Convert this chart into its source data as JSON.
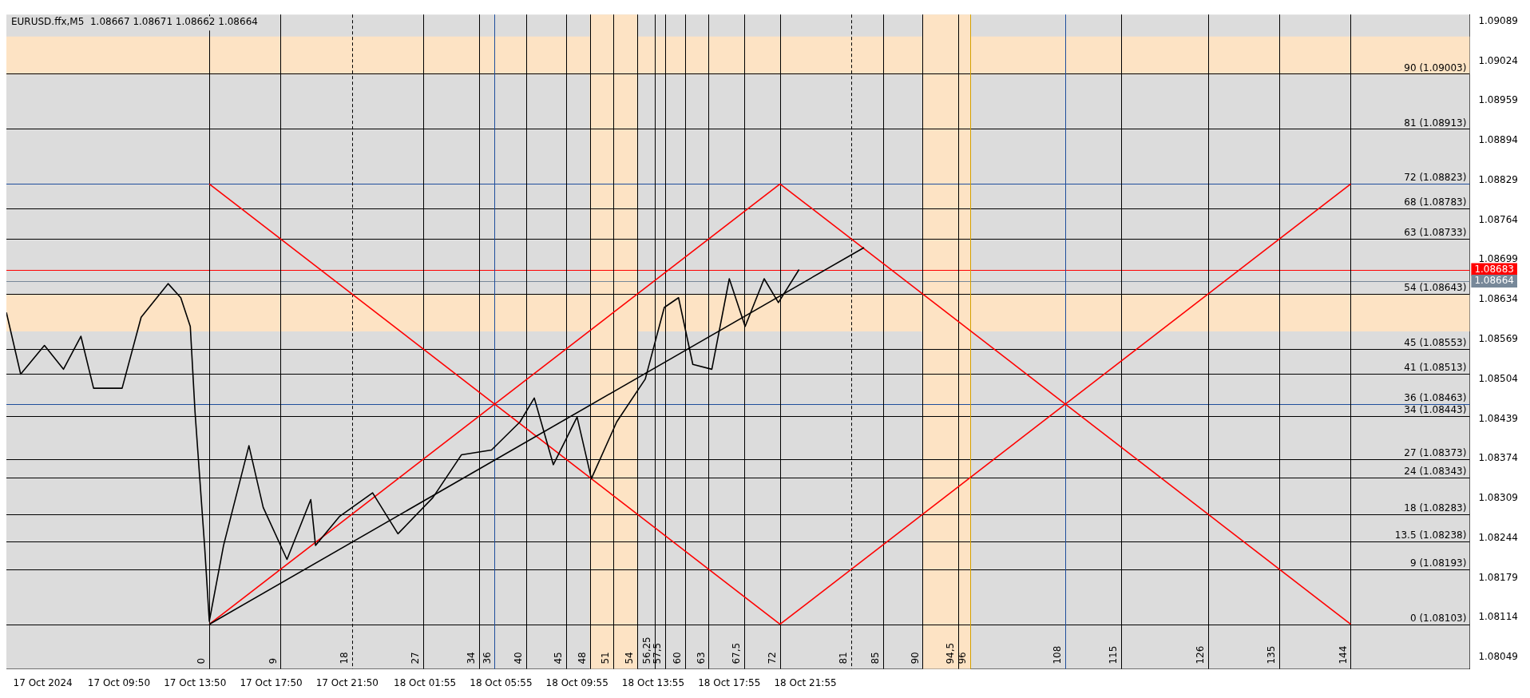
{
  "chart_data": {
    "type": "line",
    "title": "EURUSD.ffx,M5  1.08667 1.08671 1.08662 1.08664",
    "xlim": [
      "2024-10-17T03:55",
      "2024-10-20T08:50"
    ],
    "xticks": [
      {
        "value": "2024-10-17T05:50",
        "label": "17 Oct 2024"
      },
      {
        "value": "2024-10-17T09:50",
        "label": "17 Oct 09:50"
      },
      {
        "value": "2024-10-17T13:50",
        "label": "17 Oct 13:50"
      },
      {
        "value": "2024-10-17T17:50",
        "label": "17 Oct 17:50"
      },
      {
        "value": "2024-10-17T21:50",
        "label": "17 Oct 21:50"
      },
      {
        "value": "2024-10-18T01:55",
        "label": "18 Oct 01:55"
      },
      {
        "value": "2024-10-18T05:55",
        "label": "18 Oct 05:55"
      },
      {
        "value": "2024-10-18T09:55",
        "label": "18 Oct 09:55"
      },
      {
        "value": "2024-10-18T13:55",
        "label": "18 Oct 13:55"
      },
      {
        "value": "2024-10-18T17:55",
        "label": "18 Oct 17:55"
      },
      {
        "value": "2024-10-18T21:55",
        "label": "18 Oct 21:55"
      }
    ],
    "ylim": [
      1.0803,
      1.091
    ],
    "yticks": [
      1.08049,
      1.08114,
      1.08179,
      1.08244,
      1.08309,
      1.08374,
      1.08439,
      1.08504,
      1.08569,
      1.08634,
      1.08699,
      1.08764,
      1.08829,
      1.08894,
      1.08959,
      1.09024,
      1.09089
    ],
    "grid": false,
    "legend": false,
    "series": [
      {
        "color": "#000000",
        "x": [
          "2024-10-17T03:55",
          "2024-10-17T04:40",
          "2024-10-17T05:55",
          "2024-10-17T06:55",
          "2024-10-17T07:50",
          "2024-10-17T08:30",
          "2024-10-17T10:00",
          "2024-10-17T11:00",
          "2024-10-17T12:25",
          "2024-10-17T13:05",
          "2024-10-17T13:35",
          "2024-10-17T13:50",
          "2024-10-17T14:20",
          "2024-10-17T14:35",
          "2024-10-17T15:20",
          "2024-10-17T16:40",
          "2024-10-17T17:25",
          "2024-10-17T18:40",
          "2024-10-17T19:55",
          "2024-10-17T20:10",
          "2024-10-17T21:25",
          "2024-10-17T23:10",
          "2024-10-18T00:30",
          "2024-10-18T02:20",
          "2024-10-18T03:50",
          "2024-10-18T05:25",
          "2024-10-18T06:55",
          "2024-10-18T07:40",
          "2024-10-18T08:40",
          "2024-10-18T09:55",
          "2024-10-18T10:40",
          "2024-10-18T12:00",
          "2024-10-18T13:30",
          "2024-10-18T14:30",
          "2024-10-18T15:15",
          "2024-10-18T16:00",
          "2024-10-18T17:00",
          "2024-10-18T17:55",
          "2024-10-18T18:45",
          "2024-10-18T19:45",
          "2024-10-18T20:30",
          "2024-10-18T21:35"
        ],
        "values": [
          1.08613,
          1.08512,
          1.08559,
          1.0852,
          1.08574,
          1.08489,
          1.08489,
          1.08605,
          1.0866,
          1.08637,
          1.0859,
          1.0845,
          1.08232,
          1.08108,
          1.08232,
          1.08395,
          1.08294,
          1.08209,
          1.08307,
          1.08232,
          1.08279,
          1.08318,
          1.08251,
          1.0831,
          1.0838,
          1.08388,
          1.08434,
          1.08473,
          1.08364,
          1.08442,
          1.08341,
          1.08434,
          1.08504,
          1.08621,
          1.08637,
          1.08528,
          1.0852,
          1.08668,
          1.0859,
          1.08668,
          1.08629,
          1.08683
        ]
      },
      {
        "color": "#000000",
        "x": [
          "2024-10-17T14:35",
          "2024-10-19T01:00"
        ],
        "values": [
          1.08103,
          1.08719
        ]
      },
      {
        "color": "#ff0000",
        "x": [
          "2024-10-17T14:35",
          "2024-10-18T20:35"
        ],
        "values": [
          1.08823,
          1.08103
        ]
      },
      {
        "color": "#ff0000",
        "x": [
          "2024-10-18T20:35",
          "2024-10-20T02:35"
        ],
        "values": [
          1.08103,
          1.08823
        ]
      },
      {
        "color": "#ff0000",
        "x": [
          "2024-10-17T14:35",
          "2024-10-18T20:35"
        ],
        "values": [
          1.08103,
          1.08823
        ]
      },
      {
        "color": "#ff0000",
        "x": [
          "2024-10-20T02:35",
          "2024-10-18T20:35"
        ],
        "values": [
          1.08103,
          1.08823
        ]
      }
    ],
    "bands": [
      {
        "axis": "y",
        "from": 1.09002,
        "to": 1.09064,
        "color": "#fde3c4"
      },
      {
        "axis": "y",
        "from": 1.08582,
        "to": 1.08643,
        "color": "#fde3c4"
      },
      {
        "axis": "x",
        "from": "2024-10-18T10:35",
        "to": "2024-10-18T13:05",
        "color": "#fde3c4"
      },
      {
        "axis": "x",
        "from": "2024-10-19T04:05",
        "to": "2024-10-19T06:35",
        "color": "#fde3c4"
      }
    ],
    "ref_lines": [
      {
        "axis": "y",
        "value": 1.08103,
        "label": "0 (1.08103)",
        "color": "#000000"
      },
      {
        "axis": "y",
        "value": 1.08193,
        "label": "9 (1.08193)",
        "color": "#000000"
      },
      {
        "axis": "y",
        "value": 1.08238,
        "label": "13.5 (1.08238)",
        "color": "#000000"
      },
      {
        "axis": "y",
        "value": 1.08283,
        "label": "18 (1.08283)",
        "color": "#000000"
      },
      {
        "axis": "y",
        "value": 1.08343,
        "label": "24 (1.08343)",
        "color": "#000000"
      },
      {
        "axis": "y",
        "value": 1.08373,
        "label": "27 (1.08373)",
        "color": "#000000"
      },
      {
        "axis": "y",
        "value": 1.08443,
        "label": "34 (1.08443)",
        "color": "#000000"
      },
      {
        "axis": "y",
        "value": 1.08463,
        "label": "36 (1.08463)",
        "color": "#1f4e9c"
      },
      {
        "axis": "y",
        "value": 1.08513,
        "label": "41 (1.08513)",
        "color": "#000000"
      },
      {
        "axis": "y",
        "value": 1.08553,
        "label": "45 (1.08553)",
        "color": "#000000"
      },
      {
        "axis": "y",
        "value": 1.08643,
        "label": "54 (1.08643)",
        "color": "#000000"
      },
      {
        "axis": "y",
        "value": 1.08733,
        "label": "63 (1.08733)",
        "color": "#000000"
      },
      {
        "axis": "y",
        "value": 1.08783,
        "label": "68 (1.08783)",
        "color": "#000000"
      },
      {
        "axis": "y",
        "value": 1.08823,
        "label": "72 (1.08823)",
        "color": "#1f4e9c"
      },
      {
        "axis": "y",
        "value": 1.08913,
        "label": "81 (1.08913)",
        "color": "#000000"
      },
      {
        "axis": "y",
        "value": 1.09003,
        "label": "90 (1.09003)",
        "color": "#000000"
      },
      {
        "axis": "y",
        "value": 1.08683,
        "label": "1.08683",
        "color": "#ff0000"
      },
      {
        "axis": "y",
        "value": 1.08664,
        "label": "1.08664",
        "color": "#778899"
      },
      {
        "axis": "x",
        "value": "2024-10-17T14:35",
        "label": "0",
        "color": "#000000"
      },
      {
        "axis": "x",
        "value": "2024-10-17T18:20",
        "label": "9",
        "color": "#000000"
      },
      {
        "axis": "x",
        "value": "2024-10-17T22:05",
        "label": "18",
        "color": "#000000",
        "line_style": "dashed"
      },
      {
        "axis": "x",
        "value": "2024-10-18T01:50",
        "label": "27",
        "color": "#000000"
      },
      {
        "axis": "x",
        "value": "2024-10-18T04:45",
        "label": "34",
        "color": "#000000"
      },
      {
        "axis": "x",
        "value": "2024-10-18T05:35",
        "label": "36",
        "color": "#1f4e9c"
      },
      {
        "axis": "x",
        "value": "2024-10-18T07:15",
        "label": "40",
        "color": "#000000"
      },
      {
        "axis": "x",
        "value": "2024-10-18T09:20",
        "label": "45",
        "color": "#000000"
      },
      {
        "axis": "x",
        "value": "2024-10-18T10:35",
        "label": "48",
        "color": "#000000"
      },
      {
        "axis": "x",
        "value": "2024-10-18T11:50",
        "label": "51",
        "color": "#000000"
      },
      {
        "axis": "x",
        "value": "2024-10-18T13:05",
        "label": "54",
        "color": "#000000"
      },
      {
        "axis": "x",
        "value": "2024-10-18T14:01",
        "label": "56,25",
        "color": "#000000"
      },
      {
        "axis": "x",
        "value": "2024-10-18T14:33",
        "label": "57,5",
        "color": "#000000"
      },
      {
        "axis": "x",
        "value": "2024-10-18T15:35",
        "label": "60",
        "color": "#000000"
      },
      {
        "axis": "x",
        "value": "2024-10-18T16:50",
        "label": "63",
        "color": "#000000"
      },
      {
        "axis": "x",
        "value": "2024-10-18T18:43",
        "label": "67,5",
        "color": "#000000"
      },
      {
        "axis": "x",
        "value": "2024-10-18T20:35",
        "label": "72",
        "color": "#000000"
      },
      {
        "axis": "x",
        "value": "2024-10-19T00:20",
        "label": "81",
        "color": "#000000",
        "line_style": "dashed"
      },
      {
        "axis": "x",
        "value": "2024-10-19T02:00",
        "label": "85",
        "color": "#000000"
      },
      {
        "axis": "x",
        "value": "2024-10-19T04:05",
        "label": "90",
        "color": "#000000"
      },
      {
        "axis": "x",
        "value": "2024-10-19T05:58",
        "label": "94,5",
        "color": "#000000"
      },
      {
        "axis": "x",
        "value": "2024-10-19T06:35",
        "label": "96",
        "color": "#d4a000"
      },
      {
        "axis": "x",
        "value": "2024-10-19T11:35",
        "label": "108",
        "color": "#1f4e9c"
      },
      {
        "axis": "x",
        "value": "2024-10-19T14:30",
        "label": "115",
        "color": "#000000"
      },
      {
        "axis": "x",
        "value": "2024-10-19T19:05",
        "label": "126",
        "color": "#000000"
      },
      {
        "axis": "x",
        "value": "2024-10-19T22:50",
        "label": "135",
        "color": "#000000"
      },
      {
        "axis": "x",
        "value": "2024-10-20T02:35",
        "label": "144",
        "color": "#000000"
      }
    ]
  }
}
